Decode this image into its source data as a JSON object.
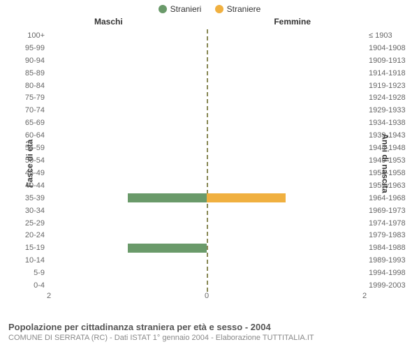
{
  "chart": {
    "type": "population-pyramid",
    "background_color": "#ffffff",
    "legend": [
      {
        "label": "Stranieri",
        "color": "#6a9a6a"
      },
      {
        "label": "Straniere",
        "color": "#f0b040"
      }
    ],
    "column_headers": {
      "left": "Maschi",
      "right": "Femmine"
    },
    "axis_titles": {
      "left": "Fasce di età",
      "right": "Anni di nascita"
    },
    "xlim": 2,
    "x_ticks": [
      2,
      0,
      2
    ],
    "x_tick_positions_pct": [
      0,
      50,
      100
    ],
    "bar_color_male": "#6a9a6a",
    "bar_color_female": "#f0b040",
    "center_line_color": "#888855",
    "label_fontsize": 11,
    "header_fontsize": 12,
    "rows": [
      {
        "age": "100+",
        "birth": "≤ 1903",
        "m": 0,
        "f": 0
      },
      {
        "age": "95-99",
        "birth": "1904-1908",
        "m": 0,
        "f": 0
      },
      {
        "age": "90-94",
        "birth": "1909-1913",
        "m": 0,
        "f": 0
      },
      {
        "age": "85-89",
        "birth": "1914-1918",
        "m": 0,
        "f": 0
      },
      {
        "age": "80-84",
        "birth": "1919-1923",
        "m": 0,
        "f": 0
      },
      {
        "age": "75-79",
        "birth": "1924-1928",
        "m": 0,
        "f": 0
      },
      {
        "age": "70-74",
        "birth": "1929-1933",
        "m": 0,
        "f": 0
      },
      {
        "age": "65-69",
        "birth": "1934-1938",
        "m": 0,
        "f": 0
      },
      {
        "age": "60-64",
        "birth": "1939-1943",
        "m": 0,
        "f": 0
      },
      {
        "age": "55-59",
        "birth": "1944-1948",
        "m": 0,
        "f": 0
      },
      {
        "age": "50-54",
        "birth": "1949-1953",
        "m": 0,
        "f": 0
      },
      {
        "age": "45-49",
        "birth": "1954-1958",
        "m": 0,
        "f": 0
      },
      {
        "age": "40-44",
        "birth": "1959-1963",
        "m": 0,
        "f": 0
      },
      {
        "age": "35-39",
        "birth": "1964-1968",
        "m": 1,
        "f": 1
      },
      {
        "age": "30-34",
        "birth": "1969-1973",
        "m": 0,
        "f": 0
      },
      {
        "age": "25-29",
        "birth": "1974-1978",
        "m": 0,
        "f": 0
      },
      {
        "age": "20-24",
        "birth": "1979-1983",
        "m": 0,
        "f": 0
      },
      {
        "age": "15-19",
        "birth": "1984-1988",
        "m": 1,
        "f": 0
      },
      {
        "age": "10-14",
        "birth": "1989-1993",
        "m": 0,
        "f": 0
      },
      {
        "age": "5-9",
        "birth": "1994-1998",
        "m": 0,
        "f": 0
      },
      {
        "age": "0-4",
        "birth": "1999-2003",
        "m": 0,
        "f": 0
      }
    ]
  },
  "caption": {
    "title": "Popolazione per cittadinanza straniera per età e sesso - 2004",
    "subtitle": "COMUNE DI SERRATA (RC) - Dati ISTAT 1° gennaio 2004 - Elaborazione TUTTITALIA.IT"
  }
}
